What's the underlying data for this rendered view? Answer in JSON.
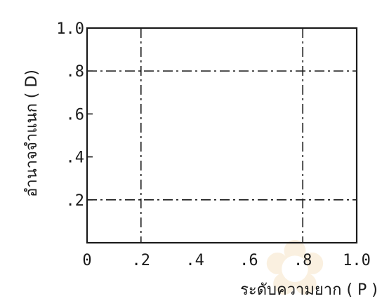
{
  "chart_data": {
    "type": "line",
    "title": "",
    "xlabel": "ระดับความยาก ( P )",
    "ylabel": "อำนาจจำแนก ( D)",
    "xlim": [
      0,
      1.0
    ],
    "ylim": [
      0,
      1.0
    ],
    "x_tick_labels": [
      "0",
      ".2",
      ".4",
      ".6",
      ".8",
      "1.0"
    ],
    "x_tick_values": [
      0,
      0.2,
      0.4,
      0.6,
      0.8,
      1.0
    ],
    "y_tick_labels": [
      ".2",
      ".4",
      ".6",
      ".8",
      "1.0"
    ],
    "y_tick_values": [
      0.2,
      0.4,
      0.6,
      0.8,
      1.0
    ],
    "reference_lines": [
      {
        "orientation": "vertical",
        "value": 0.2
      },
      {
        "orientation": "vertical",
        "value": 0.8
      },
      {
        "orientation": "horizontal",
        "value": 0.2
      },
      {
        "orientation": "horizontal",
        "value": 0.8
      }
    ],
    "grid": false,
    "legend": "none"
  }
}
